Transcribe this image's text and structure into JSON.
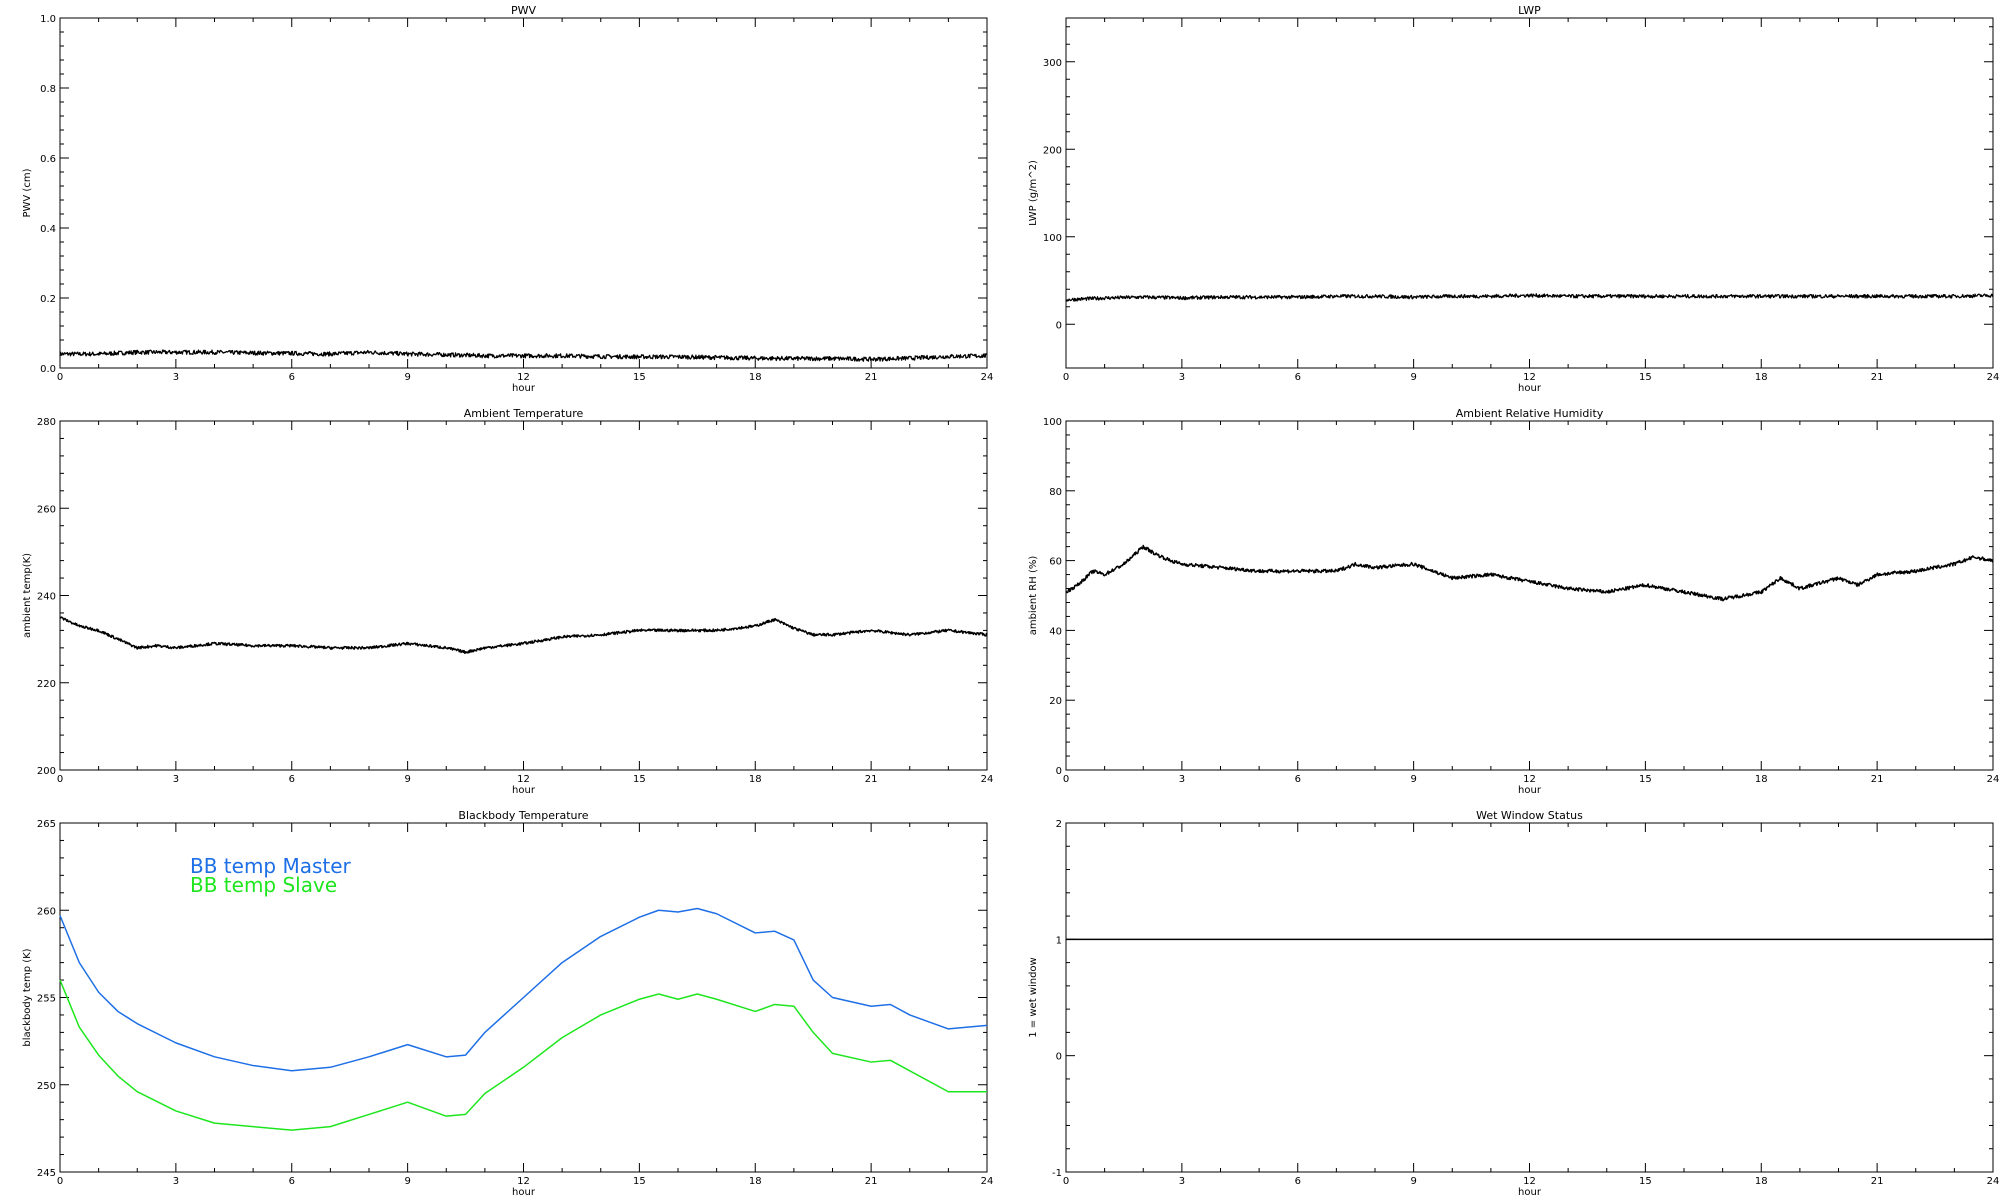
{
  "chart_data": [
    {
      "type": "line",
      "title": "PWV",
      "xlabel": "hour",
      "ylabel": "PWV (cm)",
      "xlim": [
        0,
        24
      ],
      "ylim": [
        0,
        1.0
      ],
      "xticks": [
        "0",
        "3",
        "6",
        "9",
        "12",
        "15",
        "18",
        "21",
        "24"
      ],
      "yticks": [
        "0.0",
        "0.2",
        "0.4",
        "0.6",
        "0.8",
        "1.0"
      ],
      "legend": [],
      "series": [
        {
          "color": "#000000",
          "noise": 0.006,
          "x": [
            0,
            1,
            2,
            3,
            4,
            5,
            6,
            7,
            8,
            9,
            10,
            11,
            12,
            13,
            14,
            15,
            16,
            17,
            18,
            19,
            20,
            21,
            22,
            23,
            24
          ],
          "y": [
            0.04,
            0.04,
            0.045,
            0.045,
            0.045,
            0.043,
            0.042,
            0.04,
            0.045,
            0.04,
            0.038,
            0.035,
            0.035,
            0.035,
            0.033,
            0.032,
            0.032,
            0.03,
            0.028,
            0.027,
            0.027,
            0.025,
            0.028,
            0.033,
            0.035
          ]
        }
      ]
    },
    {
      "type": "line",
      "title": "LWP",
      "xlabel": "hour",
      "ylabel": "LWP (g/m^2)",
      "xlim": [
        0,
        24
      ],
      "ylim": [
        -50,
        350
      ],
      "xticks": [
        "0",
        "3",
        "6",
        "9",
        "12",
        "15",
        "18",
        "21",
        "24"
      ],
      "yticks": [
        "0",
        "100",
        "200",
        "300"
      ],
      "legend": [],
      "series": [
        {
          "color": "#000000",
          "noise": 2.0,
          "x": [
            0,
            1,
            2,
            3,
            4,
            5,
            6,
            7,
            8,
            9,
            10,
            11,
            12,
            13,
            14,
            15,
            16,
            17,
            18,
            19,
            20,
            21,
            22,
            23,
            24
          ],
          "y": [
            28,
            30,
            31,
            30,
            31,
            31,
            31,
            32,
            32,
            31,
            32,
            32,
            33,
            32,
            32,
            32,
            32,
            32,
            32,
            32,
            32,
            32,
            32,
            32,
            33
          ]
        }
      ]
    },
    {
      "type": "line",
      "title": "Ambient Temperature",
      "xlabel": "hour",
      "ylabel": "ambient temp(K)",
      "xlim": [
        0,
        24
      ],
      "ylim": [
        200,
        280
      ],
      "xticks": [
        "0",
        "3",
        "6",
        "9",
        "12",
        "15",
        "18",
        "21",
        "24"
      ],
      "yticks": [
        "200",
        "220",
        "240",
        "260",
        "280"
      ],
      "legend": [],
      "series": [
        {
          "color": "#000000",
          "noise": 0.3,
          "x": [
            0,
            0.5,
            1,
            1.5,
            2,
            2.5,
            3,
            4,
            5,
            6,
            7,
            8,
            9,
            10,
            10.5,
            11,
            12,
            13,
            14,
            15,
            16,
            17,
            18,
            18.5,
            19,
            19.5,
            20,
            21,
            22,
            23,
            24
          ],
          "y": [
            235,
            233,
            232,
            230,
            228,
            228.5,
            228,
            229,
            228.5,
            228.5,
            228,
            228,
            229,
            228,
            227,
            228,
            229,
            230.5,
            231,
            232,
            232,
            232,
            233,
            234.5,
            232.5,
            231,
            231,
            232,
            231,
            232,
            231
          ]
        }
      ]
    },
    {
      "type": "line",
      "title": "Ambient Relative Humidity",
      "xlabel": "hour",
      "ylabel": "ambient RH (%)",
      "xlim": [
        0,
        24
      ],
      "ylim": [
        0,
        100
      ],
      "xticks": [
        "0",
        "3",
        "6",
        "9",
        "12",
        "15",
        "18",
        "21",
        "24"
      ],
      "yticks": [
        "0",
        "20",
        "40",
        "60",
        "80",
        "100"
      ],
      "legend": [],
      "series": [
        {
          "color": "#000000",
          "noise": 0.5,
          "x": [
            0,
            0.3,
            0.7,
            1,
            1.5,
            2,
            2.3,
            2.7,
            3,
            4,
            5,
            6,
            7,
            7.5,
            8,
            9,
            10,
            11,
            12,
            13,
            14,
            15,
            16,
            17,
            17.5,
            18,
            18.5,
            19,
            20,
            20.5,
            21,
            22,
            23,
            23.5,
            24
          ],
          "y": [
            51,
            53,
            57,
            56,
            59,
            64,
            62,
            60,
            59,
            58,
            57,
            57,
            57,
            59,
            58,
            59,
            55,
            56,
            54,
            52,
            51,
            53,
            51,
            49,
            50,
            51,
            55,
            52,
            55,
            53,
            56,
            57,
            59,
            61,
            60
          ]
        }
      ]
    },
    {
      "type": "line",
      "title": "Blackbody Temperature",
      "xlabel": "hour",
      "ylabel": "blackbody temp (K)",
      "xlim": [
        0,
        24
      ],
      "ylim": [
        245,
        265
      ],
      "xticks": [
        "0",
        "3",
        "6",
        "9",
        "12",
        "15",
        "18",
        "21",
        "24"
      ],
      "yticks": [
        "245",
        "250",
        "255",
        "260",
        "265"
      ],
      "legend": [
        {
          "name": "BB temp Master",
          "color": "#1e6fe6"
        },
        {
          "name": "BB temp Slave",
          "color": "#1ee61e"
        }
      ],
      "series": [
        {
          "name": "BB temp Master",
          "color": "#1e6fe6",
          "noise": 0,
          "x": [
            0,
            0.5,
            1,
            1.5,
            2,
            3,
            4,
            5,
            6,
            7,
            8,
            9,
            10,
            10.5,
            11,
            12,
            13,
            14,
            15,
            15.5,
            16,
            16.5,
            17,
            18,
            18.5,
            19,
            19.5,
            20,
            21,
            21.5,
            22,
            23,
            24
          ],
          "y": [
            259.7,
            257,
            255.3,
            254.2,
            253.5,
            252.4,
            251.6,
            251.1,
            250.8,
            251,
            251.6,
            252.3,
            251.6,
            251.7,
            253,
            255,
            257,
            258.5,
            259.6,
            260,
            259.9,
            260.1,
            259.8,
            258.7,
            258.8,
            258.3,
            256,
            255,
            254.5,
            254.6,
            254,
            253.2,
            253.4
          ]
        },
        {
          "name": "BB temp Slave",
          "color": "#1ee61e",
          "noise": 0,
          "x": [
            0,
            0.5,
            1,
            1.5,
            2,
            3,
            4,
            5,
            6,
            7,
            8,
            9,
            10,
            10.5,
            11,
            12,
            13,
            14,
            15,
            15.5,
            16,
            16.5,
            17,
            18,
            18.5,
            19,
            19.5,
            20,
            21,
            21.5,
            22,
            23,
            24
          ],
          "y": [
            256,
            253.3,
            251.7,
            250.5,
            249.6,
            248.5,
            247.8,
            247.6,
            247.4,
            247.6,
            248.3,
            249,
            248.2,
            248.3,
            249.5,
            251,
            252.7,
            254,
            254.9,
            255.2,
            254.9,
            255.2,
            254.9,
            254.2,
            254.6,
            254.5,
            253,
            251.8,
            251.3,
            251.4,
            250.8,
            249.6,
            249.6
          ]
        }
      ]
    },
    {
      "type": "line",
      "title": "Wet Window Status",
      "xlabel": "hour",
      "ylabel": "1 = wet window",
      "xlim": [
        0,
        24
      ],
      "ylim": [
        -1,
        2
      ],
      "xticks": [
        "0",
        "3",
        "6",
        "9",
        "12",
        "15",
        "18",
        "21",
        "24"
      ],
      "yticks": [
        "-1",
        "0",
        "1",
        "2"
      ],
      "legend": [],
      "series": [
        {
          "color": "#000000",
          "noise": 0,
          "x": [
            0,
            24
          ],
          "y": [
            1,
            1
          ]
        }
      ]
    }
  ]
}
